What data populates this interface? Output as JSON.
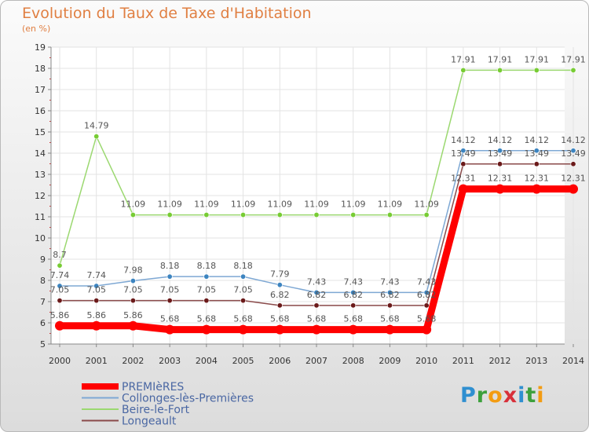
{
  "title": "Evolution du Taux de Taxe d'Habitation",
  "unit_label": "(en %)",
  "logo": {
    "text": "Proxiti",
    "letters": [
      "P",
      "r",
      "o",
      "x",
      "i",
      "t",
      "i"
    ],
    "colors": [
      "#2f8fd0",
      "#3ca03c",
      "#f39c12",
      "#d8303a",
      "#2f8fd0",
      "#3ca03c",
      "#f39c12"
    ]
  },
  "chart_data": {
    "type": "line",
    "title": "Evolution du Taux de Taxe d'Habitation",
    "ylabel": "(en %)",
    "xlabel": "",
    "x": [
      "2000",
      "2001",
      "2002",
      "2003",
      "2004",
      "2005",
      "2006",
      "2007",
      "2008",
      "2009",
      "2010",
      "2011",
      "2012",
      "2013",
      "2014"
    ],
    "ylim": [
      5,
      19
    ],
    "yticks": [
      "5",
      "6",
      "7",
      "8",
      "9",
      "10",
      "11",
      "12",
      "13",
      "14",
      "15",
      "16",
      "17",
      "18",
      "19"
    ],
    "grid": true,
    "legend_position": "bottom-left",
    "series": [
      {
        "name": "PREMIèRES",
        "color": "#ff0000",
        "marker": "#ff0000",
        "values": [
          5.86,
          5.86,
          5.86,
          5.68,
          5.68,
          5.68,
          5.68,
          5.68,
          5.68,
          5.68,
          5.68,
          12.31,
          12.31,
          12.31,
          12.31
        ],
        "labels": [
          "5.86",
          "5.86",
          "5.86",
          "5.68",
          "5.68",
          "5.68",
          "5.68",
          "5.68",
          "5.68",
          "5.68",
          "5.68",
          "12.31",
          "12.31",
          "12.31",
          "12.31"
        ]
      },
      {
        "name": "Collonges-lès-Premières",
        "color": "#7ea8d4",
        "marker": "#3c84c0",
        "values": [
          7.74,
          7.74,
          7.98,
          8.18,
          8.18,
          8.18,
          7.79,
          7.43,
          7.43,
          7.43,
          7.43,
          14.12,
          14.12,
          14.12,
          14.12
        ],
        "labels": [
          "7.74",
          "7.74",
          "7.98",
          "8.18",
          "8.18",
          "8.18",
          "7.79",
          "7.43",
          "7.43",
          "7.43",
          "7.43",
          "14.12",
          "14.12",
          "14.12",
          "14.12"
        ]
      },
      {
        "name": "Beire-le-Fort",
        "color": "#9bd870",
        "marker": "#77cc33",
        "values": [
          8.7,
          14.79,
          11.09,
          11.09,
          11.09,
          11.09,
          11.09,
          11.09,
          11.09,
          11.09,
          11.09,
          17.91,
          17.91,
          17.91,
          17.91
        ],
        "labels": [
          "8.7",
          "14.79",
          "11.09",
          "11.09",
          "11.09",
          "11.09",
          "11.09",
          "11.09",
          "11.09",
          "11.09",
          "11.09",
          "17.91",
          "17.91",
          "17.91",
          "17.91"
        ]
      },
      {
        "name": "Longeault",
        "color": "#8a4a4a",
        "marker": "#6b1a1a",
        "values": [
          7.05,
          7.05,
          7.05,
          7.05,
          7.05,
          7.05,
          6.82,
          6.82,
          6.82,
          6.82,
          6.82,
          13.49,
          13.49,
          13.49,
          13.49
        ],
        "labels": [
          "7.05",
          "7.05",
          "7.05",
          "7.05",
          "7.05",
          "7.05",
          "6.82",
          "6.82",
          "6.82",
          "6.82",
          "6.82",
          "13.49",
          "13.49",
          "13.49",
          "13.49"
        ]
      }
    ]
  }
}
